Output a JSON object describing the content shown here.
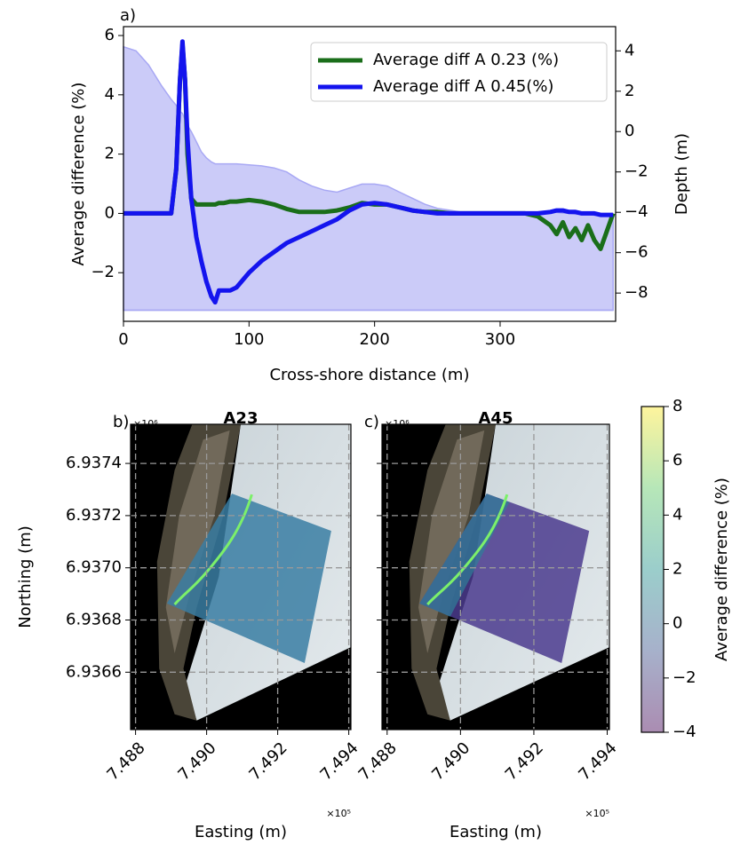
{
  "chart_data": [
    {
      "type": "line",
      "label": "a)",
      "xlabel": "Cross-shore distance (m)",
      "ylabel": "Average difference (%)",
      "y2label": "Depth (m)",
      "xlim": [
        0,
        392
      ],
      "ylim": [
        -3.64,
        6.3
      ],
      "y2lim": [
        -9.4,
        5.2
      ],
      "xticks": [
        0,
        100,
        200,
        300
      ],
      "yticks": [
        {
          "value": -2,
          "label": "−2"
        },
        0,
        2,
        4,
        6
      ],
      "y2ticks": [
        {
          "value": -8,
          "label": "−8"
        },
        {
          "value": -6,
          "label": "−6"
        },
        {
          "value": -4,
          "label": "−4"
        },
        {
          "value": -2,
          "label": "−2"
        },
        0,
        2,
        4
      ],
      "legend": "upper right",
      "x": [
        0,
        10,
        20,
        30,
        38,
        42,
        45,
        47,
        49,
        51,
        54,
        58,
        62,
        66,
        70,
        73,
        76,
        80,
        85,
        90,
        100,
        110,
        120,
        130,
        140,
        150,
        160,
        170,
        180,
        190,
        200,
        210,
        220,
        230,
        240,
        250,
        260,
        270,
        280,
        290,
        300,
        310,
        320,
        330,
        340,
        345,
        350,
        355,
        360,
        365,
        370,
        375,
        380,
        385,
        390
      ],
      "series": [
        {
          "axis": "y2",
          "fill": true,
          "fill_to": -8.85,
          "color": "#a8a8f4",
          "values": [
            4.2,
            4.0,
            3.3,
            2.3,
            1.6,
            1.3,
            1.0,
            0.9,
            0.6,
            0.3,
            0.0,
            -0.5,
            -1.0,
            -1.3,
            -1.5,
            -1.6,
            -1.6,
            -1.6,
            -1.6,
            -1.6,
            -1.65,
            -1.7,
            -1.8,
            -2.0,
            -2.4,
            -2.7,
            -2.9,
            -3.0,
            -2.8,
            -2.6,
            -2.6,
            -2.7,
            -3.0,
            -3.3,
            -3.6,
            -3.8,
            -3.9,
            -4.0,
            -4.0,
            -4.0,
            -4.0,
            -4.0,
            -4.0,
            -4.0,
            -4.0,
            -4.0,
            -4.05,
            -4.05,
            -4.1,
            -4.1,
            -4.1,
            -4.15,
            -4.15,
            -4.2,
            -4.2
          ]
        },
        {
          "name": "Average diff A 0.23 (%)",
          "color": "#1a6e1a",
          "values": [
            0,
            0,
            0,
            0,
            0,
            1.5,
            4.5,
            5.7,
            4.5,
            2.0,
            0.5,
            0.3,
            0.3,
            0.3,
            0.3,
            0.3,
            0.35,
            0.35,
            0.4,
            0.4,
            0.45,
            0.4,
            0.3,
            0.15,
            0.05,
            0.05,
            0.05,
            0.1,
            0.2,
            0.35,
            0.3,
            0.3,
            0.2,
            0.1,
            0.05,
            0.05,
            0,
            0,
            0,
            0,
            0,
            0,
            0,
            -0.1,
            -0.4,
            -0.7,
            -0.3,
            -0.8,
            -0.5,
            -0.9,
            -0.4,
            -0.9,
            -1.2,
            -0.6,
            0
          ]
        },
        {
          "name": "Average diff A 0.45(%)",
          "color": "#1414ee",
          "values": [
            0,
            0,
            0,
            0,
            0,
            1.5,
            4.5,
            5.8,
            4.5,
            2.5,
            0.5,
            -0.8,
            -1.6,
            -2.3,
            -2.8,
            -3.0,
            -2.6,
            -2.6,
            -2.6,
            -2.5,
            -2.0,
            -1.6,
            -1.3,
            -1.0,
            -0.8,
            -0.6,
            -0.4,
            -0.2,
            0.1,
            0.3,
            0.35,
            0.3,
            0.2,
            0.1,
            0.05,
            0,
            0,
            0,
            0,
            0,
            0,
            0,
            0,
            0,
            0.05,
            0.1,
            0.1,
            0.05,
            0.05,
            0,
            0,
            0,
            -0.05,
            -0.05,
            -0.05
          ]
        }
      ]
    },
    {
      "type": "map",
      "label": "b)",
      "title": "A23",
      "xlabel": "Easting (m)",
      "ylabel": "Northing (m)",
      "x_offset": "×10⁵",
      "y_offset": "×10⁶",
      "xlim": [
        7.48786,
        7.49406
      ],
      "ylim": [
        6.93638,
        6.93755
      ],
      "grid": true,
      "xticks": [
        7.488,
        {
          "value": 7.49,
          "label": "7.490"
        },
        7.492,
        7.494
      ],
      "yticks": [
        6.9366,
        6.9368,
        {
          "value": 6.937,
          "label": "6.9370"
        },
        6.9372,
        6.9374
      ]
    },
    {
      "type": "map",
      "label": "c)",
      "title": "A45",
      "xlabel": "Easting (m)",
      "x_offset": "×10⁵",
      "y_offset": "×10⁶",
      "xlim": [
        7.48786,
        7.49406
      ],
      "ylim": [
        6.93638,
        6.93755
      ],
      "grid": true,
      "xticks": [
        7.488,
        {
          "value": 7.49,
          "label": "7.490"
        },
        7.492,
        7.494
      ]
    },
    {
      "type": "colorbar",
      "ylabel": "Average difference (%)",
      "ylim": [
        -4,
        8
      ],
      "yticks": [
        {
          "value": -4,
          "label": "−4"
        },
        {
          "value": -2,
          "label": "−2"
        },
        0,
        2,
        4,
        6,
        8
      ]
    }
  ]
}
